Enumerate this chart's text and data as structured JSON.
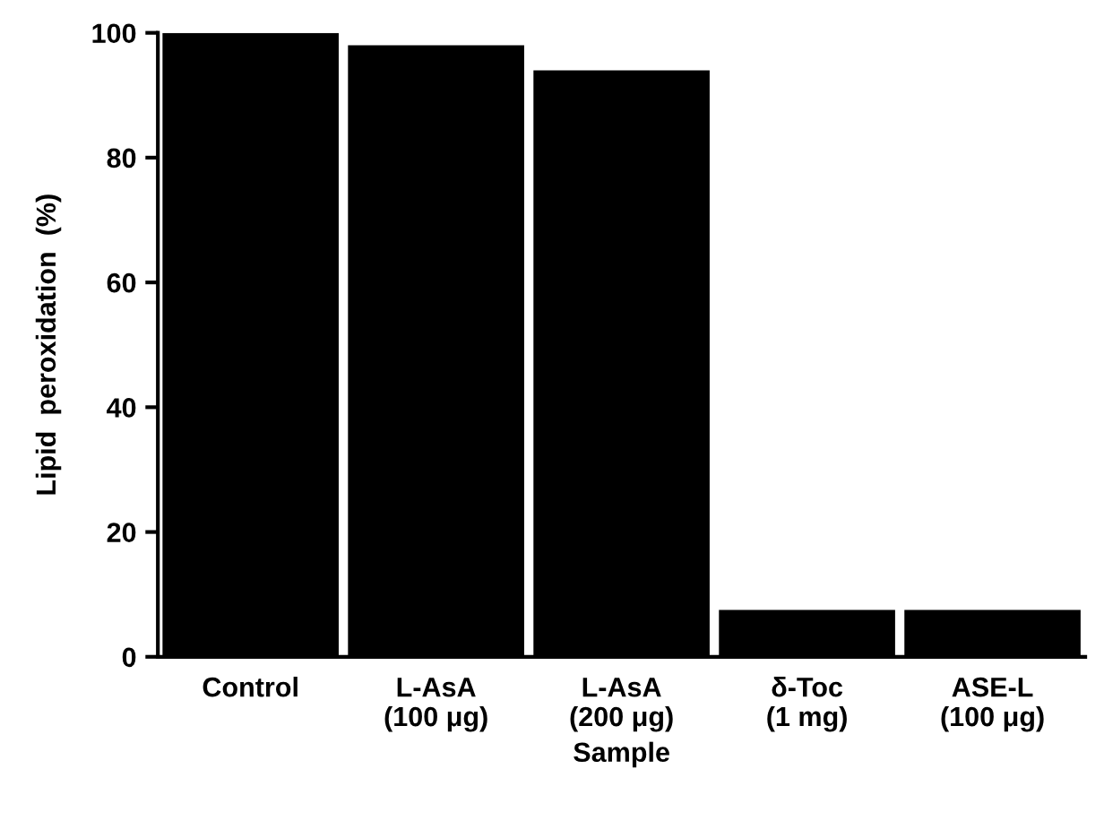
{
  "chart_data": {
    "type": "bar",
    "xlabel": "Sample",
    "ylabel": "Lipid  peroxidation  (%)",
    "categories": [
      "Control",
      "L-AsA\n(100 μg)",
      "L-AsA\n(200 μg)",
      "δ-Toc\n(1 mg)",
      "ASE-L\n(100 μg)"
    ],
    "values": [
      100,
      98,
      94,
      7.5,
      7.5
    ],
    "color": "#000000",
    "ylim": [
      0,
      100
    ],
    "yticks": [
      0,
      20,
      40,
      60,
      80,
      100
    ],
    "grid": false
  }
}
